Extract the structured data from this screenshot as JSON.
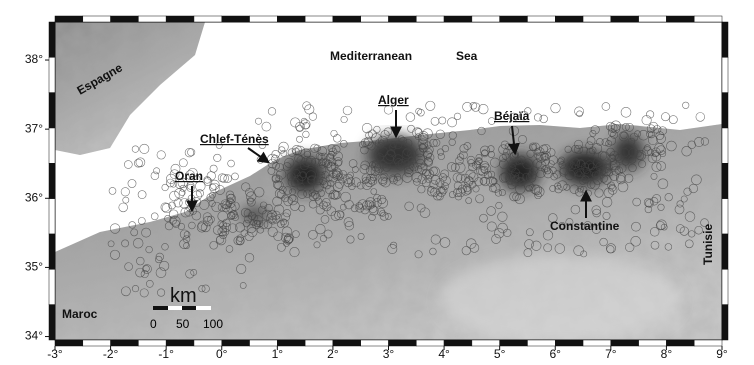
{
  "places": {
    "mediterranean": "Mediterranean",
    "sea": "Sea",
    "espagne": "Espagne",
    "maroc": "Maroc",
    "tunisie": "Tunisie",
    "alger": "Alger",
    "bejaia": "Béjaïa",
    "chlef": "Chlef-Ténès",
    "oran": "Oran",
    "constantine": "Constantine"
  },
  "scale_bar": {
    "unit": "km",
    "labels": [
      "0",
      "50",
      "100"
    ]
  },
  "axes": {
    "xlim": [
      -3,
      9
    ],
    "ylim": [
      33.95,
      38.55
    ],
    "xticks": [
      {
        "value": -3,
        "label": "-3°"
      },
      {
        "value": -2,
        "label": "-2°"
      },
      {
        "value": -1,
        "label": "-1°"
      },
      {
        "value": 0,
        "label": "0°"
      },
      {
        "value": 1,
        "label": "1°"
      },
      {
        "value": 2,
        "label": "2°"
      },
      {
        "value": 3,
        "label": "3°"
      },
      {
        "value": 4,
        "label": "4°"
      },
      {
        "value": 5,
        "label": "5°"
      },
      {
        "value": 6,
        "label": "6°"
      },
      {
        "value": 7,
        "label": "7°"
      },
      {
        "value": 8,
        "label": "8°"
      },
      {
        "value": 9,
        "label": "9°"
      }
    ],
    "yticks": [
      {
        "value": 34,
        "label": "34°"
      },
      {
        "value": 35,
        "label": "35°"
      },
      {
        "value": 36,
        "label": "36°"
      },
      {
        "value": 37,
        "label": "37°"
      },
      {
        "value": 38,
        "label": "38°"
      }
    ]
  }
}
